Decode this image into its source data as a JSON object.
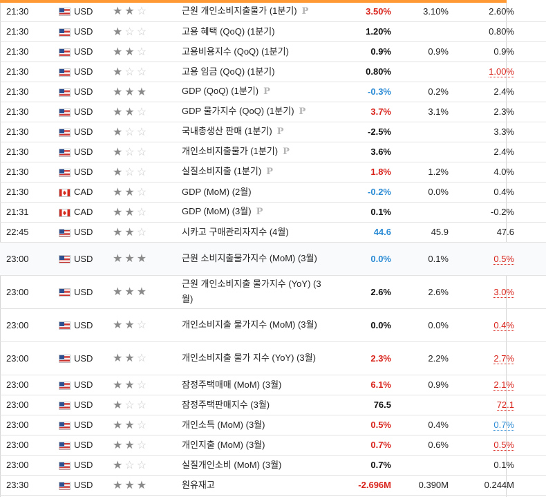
{
  "colors": {
    "accent": "#ff9933",
    "red": "#d9241c",
    "blue": "#2b8bd4"
  },
  "rows": [
    {
      "time": "21:30",
      "country": "us",
      "currency": "USD",
      "stars": 2,
      "event": "근원 개인소비지출물가 (1분기)",
      "pmark": true,
      "actual": "3.50%",
      "actual_color": "red",
      "forecast": "3.10%",
      "previous": "2.60%",
      "prev_style": "plain",
      "h": 29
    },
    {
      "time": "21:30",
      "country": "us",
      "currency": "USD",
      "stars": 1,
      "event": "고용 혜택 (QoQ) (1분기)",
      "pmark": false,
      "actual": "1.20%",
      "actual_color": "black",
      "forecast": "",
      "previous": "0.80%",
      "prev_style": "plain",
      "h": 29
    },
    {
      "time": "21:30",
      "country": "us",
      "currency": "USD",
      "stars": 2,
      "event": "고용비용지수 (QoQ) (1분기)",
      "pmark": false,
      "actual": "0.9%",
      "actual_color": "black",
      "forecast": "0.9%",
      "previous": "0.9%",
      "prev_style": "plain",
      "h": 29
    },
    {
      "time": "21:30",
      "country": "us",
      "currency": "USD",
      "stars": 1,
      "event": "고용 임금 (QoQ) (1분기)",
      "pmark": false,
      "actual": "0.80%",
      "actual_color": "black",
      "forecast": "",
      "previous": "1.00%",
      "prev_style": "u-red",
      "h": 29
    },
    {
      "time": "21:30",
      "country": "us",
      "currency": "USD",
      "stars": 3,
      "event": "GDP (QoQ) (1분기)",
      "pmark": true,
      "actual": "-0.3%",
      "actual_color": "blue",
      "forecast": "0.2%",
      "previous": "2.4%",
      "prev_style": "plain",
      "h": 29
    },
    {
      "time": "21:30",
      "country": "us",
      "currency": "USD",
      "stars": 2,
      "event": "GDP 물가지수 (QoQ) (1분기)",
      "pmark": true,
      "actual": "3.7%",
      "actual_color": "red",
      "forecast": "3.1%",
      "previous": "2.3%",
      "prev_style": "plain",
      "h": 29
    },
    {
      "time": "21:30",
      "country": "us",
      "currency": "USD",
      "stars": 1,
      "event": "국내총생산 판매 (1분기)",
      "pmark": true,
      "actual": "-2.5%",
      "actual_color": "black",
      "forecast": "",
      "previous": "3.3%",
      "prev_style": "plain",
      "h": 29
    },
    {
      "time": "21:30",
      "country": "us",
      "currency": "USD",
      "stars": 1,
      "event": "개인소비지출물가 (1분기)",
      "pmark": true,
      "actual": "3.6%",
      "actual_color": "black",
      "forecast": "",
      "previous": "2.4%",
      "prev_style": "plain",
      "h": 29
    },
    {
      "time": "21:30",
      "country": "us",
      "currency": "USD",
      "stars": 1,
      "event": "실질소비지출 (1분기)",
      "pmark": true,
      "actual": "1.8%",
      "actual_color": "red",
      "forecast": "1.2%",
      "previous": "4.0%",
      "prev_style": "plain",
      "h": 29
    },
    {
      "time": "21:30",
      "country": "ca",
      "currency": "CAD",
      "stars": 2,
      "event": "GDP (MoM) (2월)",
      "pmark": false,
      "actual": "-0.2%",
      "actual_color": "blue",
      "forecast": "0.0%",
      "previous": "0.4%",
      "prev_style": "plain",
      "h": 29
    },
    {
      "time": "21:31",
      "country": "ca",
      "currency": "CAD",
      "stars": 2,
      "event": "GDP (MoM) (3월)",
      "pmark": true,
      "actual": "0.1%",
      "actual_color": "black",
      "forecast": "",
      "previous": "-0.2%",
      "prev_style": "plain",
      "h": 29
    },
    {
      "time": "22:45",
      "country": "us",
      "currency": "USD",
      "stars": 2,
      "event": "시카고 구매관리자지수 (4월)",
      "pmark": false,
      "actual": "44.6",
      "actual_color": "blue",
      "forecast": "45.9",
      "previous": "47.6",
      "prev_style": "plain",
      "h": 29
    },
    {
      "time": "23:00",
      "country": "us",
      "currency": "USD",
      "stars": 3,
      "event": "근원 소비지출물가지수 (MoM) (3월)",
      "pmark": false,
      "actual": "0.0%",
      "actual_color": "blue",
      "forecast": "0.1%",
      "previous": "0.5%",
      "prev_style": "u-red",
      "h": 48,
      "alt": true
    },
    {
      "time": "23:00",
      "country": "us",
      "currency": "USD",
      "stars": 3,
      "event": "근원 개인소비지출 물가지수 (YoY) (3월)",
      "pmark": false,
      "actual": "2.6%",
      "actual_color": "black",
      "forecast": "2.6%",
      "previous": "3.0%",
      "prev_style": "u-red",
      "h": 48
    },
    {
      "time": "23:00",
      "country": "us",
      "currency": "USD",
      "stars": 2,
      "event": "개인소비지출 물가지수 (MoM) (3월)",
      "pmark": false,
      "actual": "0.0%",
      "actual_color": "black",
      "forecast": "0.0%",
      "previous": "0.4%",
      "prev_style": "u-red",
      "h": 48
    },
    {
      "time": "23:00",
      "country": "us",
      "currency": "USD",
      "stars": 2,
      "event": "개인소비지출 물가 지수 (YoY) (3월)",
      "pmark": false,
      "actual": "2.3%",
      "actual_color": "red",
      "forecast": "2.2%",
      "previous": "2.7%",
      "prev_style": "u-red",
      "h": 48
    },
    {
      "time": "23:00",
      "country": "us",
      "currency": "USD",
      "stars": 2,
      "event": "잠정주택매매 (MoM) (3월)",
      "pmark": false,
      "actual": "6.1%",
      "actual_color": "red",
      "forecast": "0.9%",
      "previous": "2.1%",
      "prev_style": "u-red",
      "h": 29
    },
    {
      "time": "23:00",
      "country": "us",
      "currency": "USD",
      "stars": 1,
      "event": "잠정주택판매지수 (3월)",
      "pmark": false,
      "actual": "76.5",
      "actual_color": "black",
      "forecast": "",
      "previous": "72.1",
      "prev_style": "u-red",
      "h": 29
    },
    {
      "time": "23:00",
      "country": "us",
      "currency": "USD",
      "stars": 2,
      "event": "개인소득 (MoM) (3월)",
      "pmark": false,
      "actual": "0.5%",
      "actual_color": "red",
      "forecast": "0.4%",
      "previous": "0.7%",
      "prev_style": "u-blue",
      "h": 29
    },
    {
      "time": "23:00",
      "country": "us",
      "currency": "USD",
      "stars": 2,
      "event": "개인지출 (MoM) (3월)",
      "pmark": false,
      "actual": "0.7%",
      "actual_color": "red",
      "forecast": "0.6%",
      "previous": "0.5%",
      "prev_style": "u-red",
      "h": 29
    },
    {
      "time": "23:00",
      "country": "us",
      "currency": "USD",
      "stars": 1,
      "event": "실질개인소비 (MoM) (3월)",
      "pmark": false,
      "actual": "0.7%",
      "actual_color": "black",
      "forecast": "",
      "previous": "0.1%",
      "prev_style": "plain",
      "h": 29
    },
    {
      "time": "23:30",
      "country": "us",
      "currency": "USD",
      "stars": 3,
      "event": "원유재고",
      "pmark": false,
      "actual": "-2.696M",
      "actual_color": "red",
      "forecast": "0.390M",
      "previous": "0.244M",
      "prev_style": "plain",
      "h": 29
    }
  ],
  "pmark_glyph": "P"
}
